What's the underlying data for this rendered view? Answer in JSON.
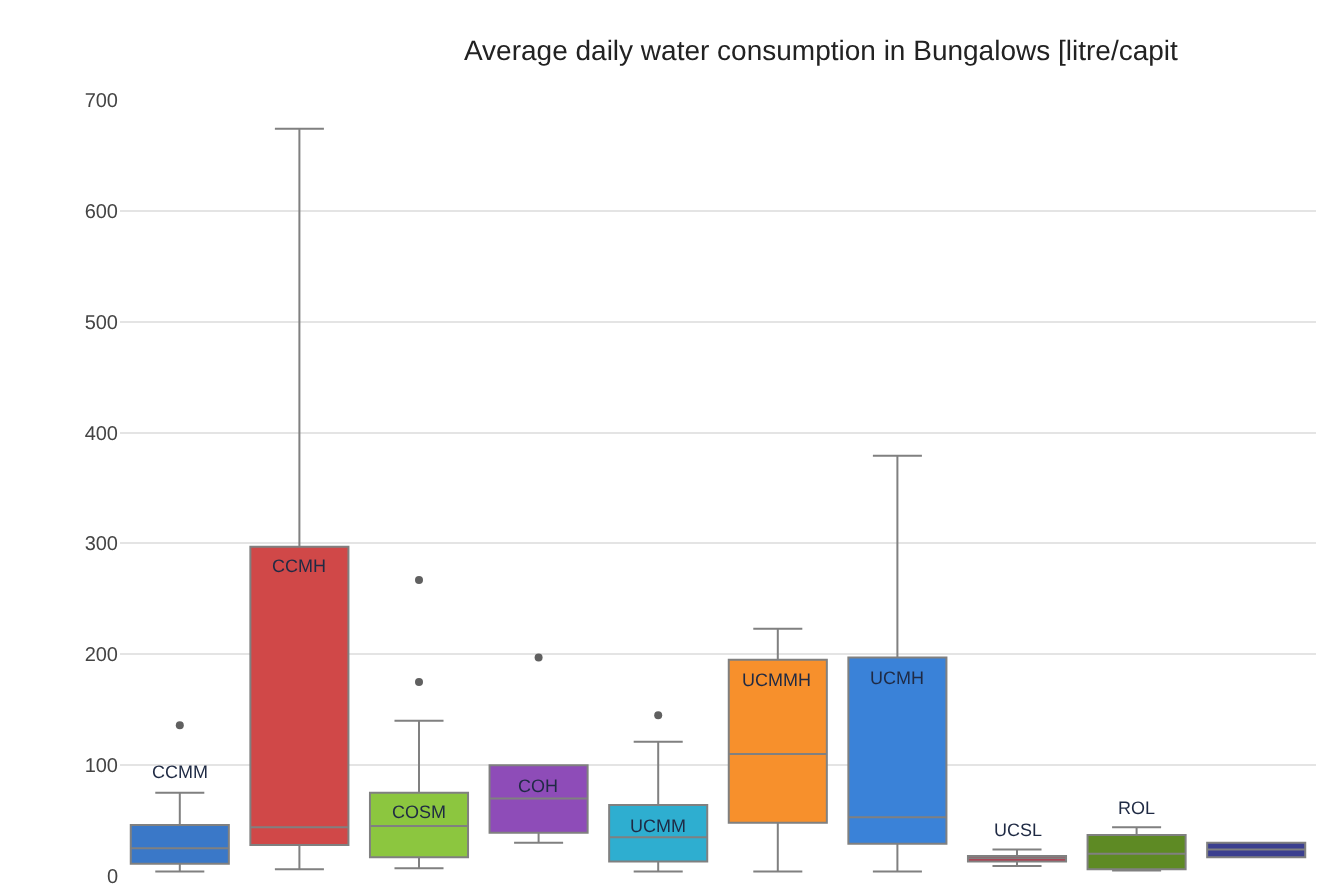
{
  "chart_data": {
    "type": "box",
    "title": "Average daily water consumption in Bungalows [litre/capit",
    "categories": [
      "CCMM",
      "CCMH",
      "COSM",
      "COH",
      "UCMM",
      "UCMMH",
      "UCMH",
      "UCSL",
      "ROL",
      null
    ],
    "colors": [
      "#3a78c8",
      "#d04848",
      "#8cc63f",
      "#8e4cb8",
      "#2eaed0",
      "#f7902c",
      "#3a82d8",
      "#b83248",
      "#5e8a24",
      "#3b3f8f"
    ],
    "boxes": [
      {
        "low": 4,
        "q1": 11,
        "median": 25,
        "q3": 46,
        "high": 75,
        "outliers": [
          136
        ]
      },
      {
        "low": 6,
        "q1": 28,
        "median": 44,
        "q3": 297,
        "high": 674
      },
      {
        "low": 7,
        "q1": 17,
        "median": 45,
        "q3": 75,
        "high": 140,
        "outliers": [
          175,
          267
        ]
      },
      {
        "low": 30,
        "q1": 39,
        "median": 70,
        "q3": 100,
        "high": 100,
        "outliers": [
          197
        ]
      },
      {
        "low": 4,
        "q1": 13,
        "median": 35,
        "q3": 64,
        "high": 121,
        "outliers": [
          145
        ]
      },
      {
        "low": 4,
        "q1": 48,
        "median": 110,
        "q3": 195,
        "high": 223
      },
      {
        "low": 4,
        "q1": 29,
        "median": 53,
        "q3": 197,
        "high": 379
      },
      {
        "low": 9,
        "q1": 13,
        "median": 16,
        "q3": 18,
        "high": 24
      },
      {
        "low": 5,
        "q1": 6,
        "median": 20,
        "q3": 37,
        "high": 44
      },
      {
        "low": 17,
        "q1": 17,
        "median": 24,
        "q3": 30,
        "high": 30
      }
    ],
    "ylim": [
      0,
      700
    ],
    "yticks": [
      0,
      100,
      200,
      300,
      400,
      500,
      600,
      700
    ],
    "grid": "y",
    "tick_labels": "y"
  }
}
